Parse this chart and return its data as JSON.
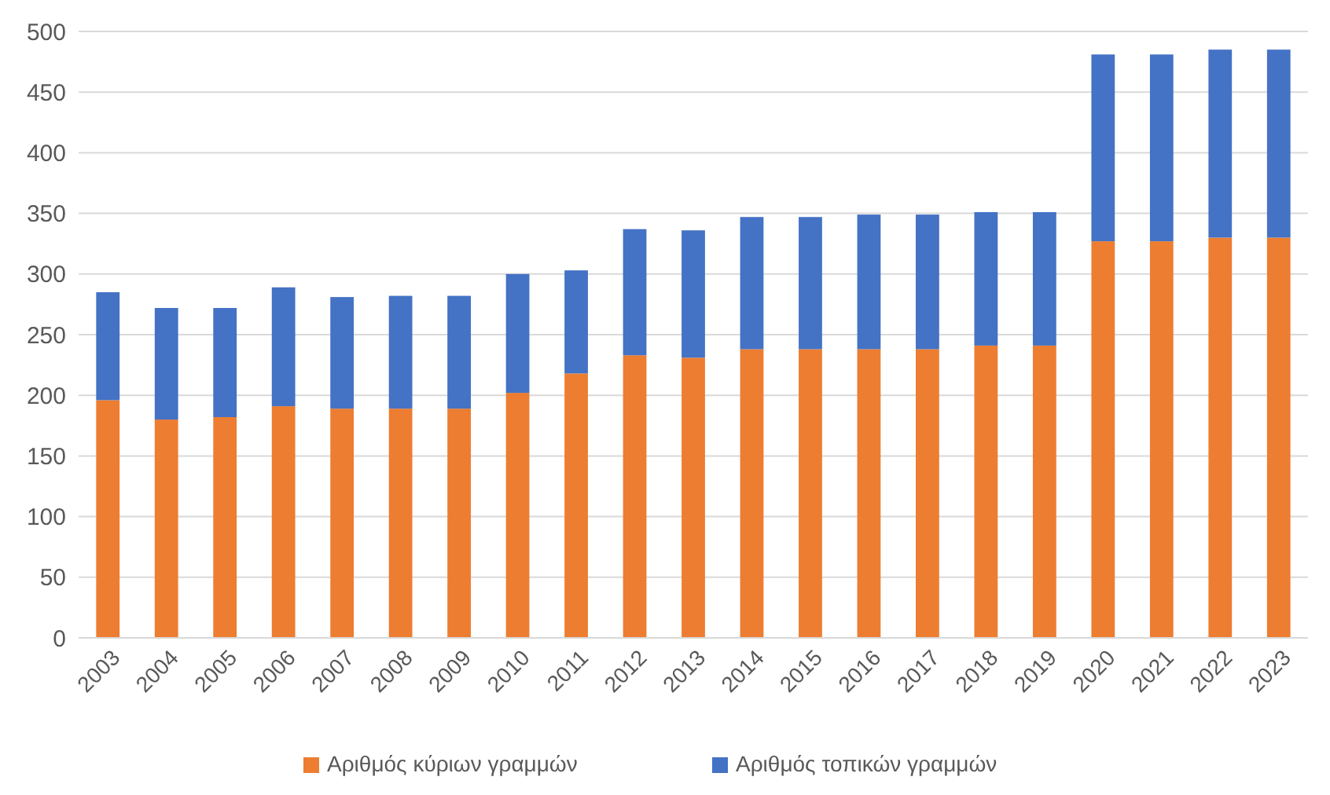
{
  "chart_data": {
    "type": "bar",
    "stacked": true,
    "categories": [
      "2003",
      "2004",
      "2005",
      "2006",
      "2007",
      "2008",
      "2009",
      "2010",
      "2011",
      "2012",
      "2013",
      "2014",
      "2015",
      "2016",
      "2017",
      "2018",
      "2019",
      "2020",
      "2021",
      "2022",
      "2023"
    ],
    "series": [
      {
        "name": "Αριθμός κύριων γραμμών",
        "color": "#ed7d31",
        "values": [
          196,
          180,
          182,
          191,
          189,
          189,
          189,
          202,
          218,
          233,
          231,
          238,
          238,
          238,
          238,
          241,
          241,
          327,
          327,
          330,
          330
        ]
      },
      {
        "name": "Αριθμός τοπικών γραμμών",
        "color": "#4472c4",
        "values": [
          89,
          92,
          90,
          98,
          92,
          93,
          93,
          98,
          85,
          104,
          105,
          109,
          109,
          111,
          111,
          110,
          110,
          154,
          154,
          155,
          155
        ]
      }
    ],
    "ylim": [
      0,
      500
    ],
    "yticks": [
      0,
      50,
      100,
      150,
      200,
      250,
      300,
      350,
      400,
      450,
      500
    ],
    "grid": "y",
    "legend": "bottom"
  }
}
